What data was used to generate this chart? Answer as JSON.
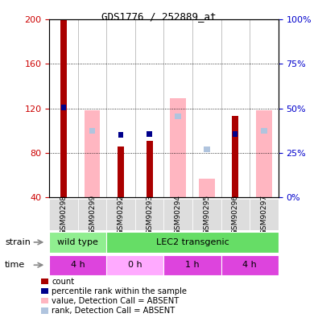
{
  "title": "GDS1776 / 252889_at",
  "samples": [
    "GSM90298",
    "GSM90299",
    "GSM90292",
    "GSM90293",
    "GSM90294",
    "GSM90295",
    "GSM90296",
    "GSM90297"
  ],
  "count_values": [
    200,
    null,
    86,
    91,
    null,
    null,
    113,
    null
  ],
  "percentile_rank": [
    121,
    null,
    96,
    97,
    null,
    null,
    97,
    null
  ],
  "absent_value": [
    null,
    118,
    null,
    null,
    129,
    57,
    null,
    118
  ],
  "absent_rank": [
    null,
    100,
    null,
    null,
    113,
    83,
    null,
    100
  ],
  "ylim_left": [
    40,
    200
  ],
  "ylim_right": [
    0,
    100
  ],
  "yticks_left": [
    40,
    80,
    120,
    160,
    200
  ],
  "yticks_right": [
    0,
    25,
    50,
    75,
    100
  ],
  "strain_groups": [
    {
      "label": "wild type",
      "start": 0,
      "end": 2,
      "color": "#90EE90"
    },
    {
      "label": "LEC2 transgenic",
      "start": 2,
      "end": 8,
      "color": "#66DD66"
    }
  ],
  "time_groups": [
    {
      "label": "4 h",
      "start": 0,
      "end": 2,
      "color": "#DD44DD"
    },
    {
      "label": "0 h",
      "start": 2,
      "end": 4,
      "color": "#FFAAFF"
    },
    {
      "label": "1 h",
      "start": 4,
      "end": 6,
      "color": "#DD44DD"
    },
    {
      "label": "4 h",
      "start": 6,
      "end": 8,
      "color": "#DD44DD"
    }
  ],
  "count_color": "#AA0000",
  "percentile_color": "#00008B",
  "absent_value_color": "#FFB6C1",
  "absent_rank_color": "#B0C4DE",
  "left_tick_color": "#CC0000",
  "right_tick_color": "#0000CC",
  "legend_items": [
    {
      "color": "#AA0000",
      "label": "count"
    },
    {
      "color": "#00008B",
      "label": "percentile rank within the sample"
    },
    {
      "color": "#FFB6C1",
      "label": "value, Detection Call = ABSENT"
    },
    {
      "color": "#B0C4DE",
      "label": "rank, Detection Call = ABSENT"
    }
  ]
}
